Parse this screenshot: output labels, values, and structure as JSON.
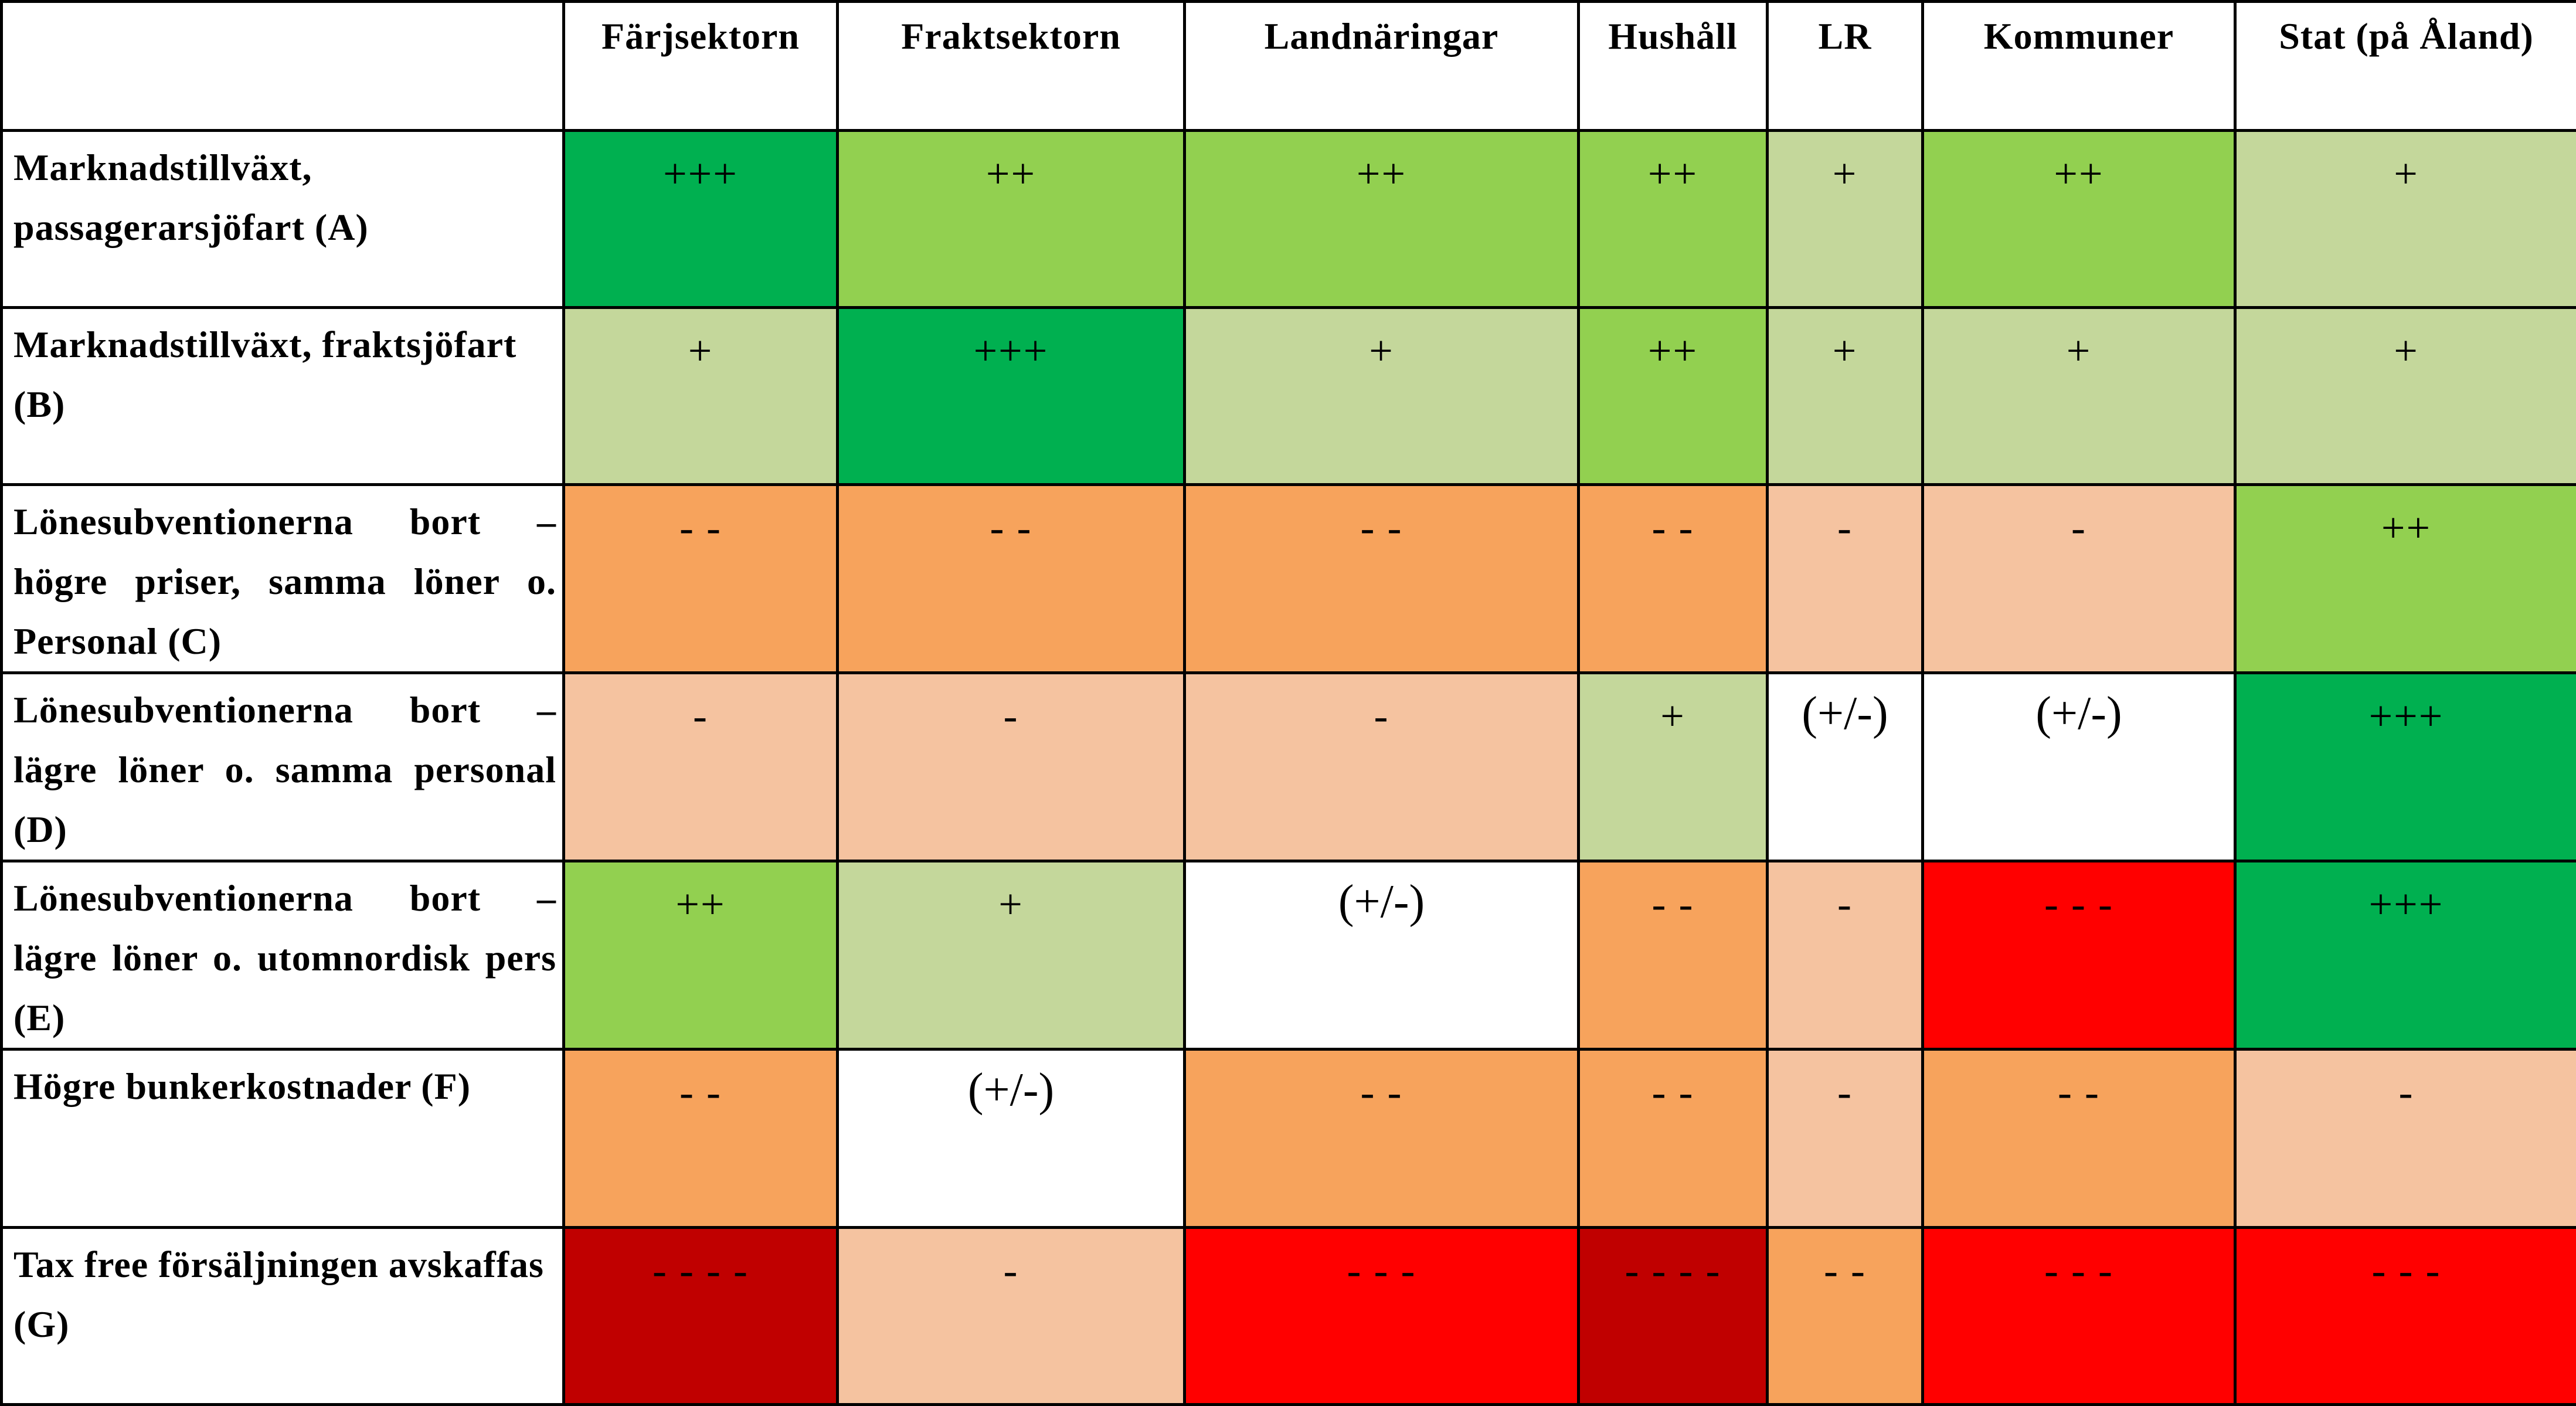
{
  "chart_data": {
    "type": "table",
    "title": "",
    "legend_colors": {
      "+++": "#00b050",
      "++": "#92d050",
      "+": "#c4d79b",
      "(+/-)": "#ffffff",
      "-": "#f5c3a0",
      "- -": "#f7a35c",
      "- - -": "#ff0000",
      "- - - -": "#c00000"
    },
    "columns": [
      "Färjsektorn",
      "Fraktsektorn",
      "Landnäringar",
      "Hushåll",
      "LR",
      "Kommuner",
      "Stat (på Åland)"
    ],
    "rows": [
      {
        "label": "Marknadstillväxt, passagerarsjöfart (A)",
        "values": [
          "+++",
          "++",
          "++",
          "++",
          "+",
          "++",
          "+"
        ]
      },
      {
        "label": "Marknadstillväxt, fraktsjöfart (B)",
        "values": [
          "+",
          "+++",
          "+",
          "++",
          "+",
          "+",
          "+"
        ]
      },
      {
        "label": "Lönesubventionerna bort – högre priser, samma löner o. Personal (C)",
        "values": [
          "- -",
          "- -",
          "- -",
          "- -",
          "-",
          "-",
          "++"
        ]
      },
      {
        "label": "Lönesubventionerna bort – lägre löner o. samma personal (D)",
        "values": [
          "-",
          "-",
          "-",
          "+",
          "(+/-)",
          "(+/-)",
          "+++"
        ]
      },
      {
        "label": "Lönesubventionerna bort – lägre löner o. utomnordisk pers (E)",
        "values": [
          "++",
          "+",
          "(+/-)",
          "- -",
          "-",
          "- - -",
          "+++"
        ]
      },
      {
        "label": "Högre bunkerkostnader (F)",
        "values": [
          "- -",
          "(+/-)",
          "- -",
          "- -",
          "-",
          "- -",
          "-"
        ]
      },
      {
        "label": "Tax free försäljningen avskaffas (G)",
        "values": [
          "- - - -",
          "-",
          "- - -",
          "- - - -",
          "- -",
          "- - -",
          "- - -"
        ]
      }
    ]
  }
}
